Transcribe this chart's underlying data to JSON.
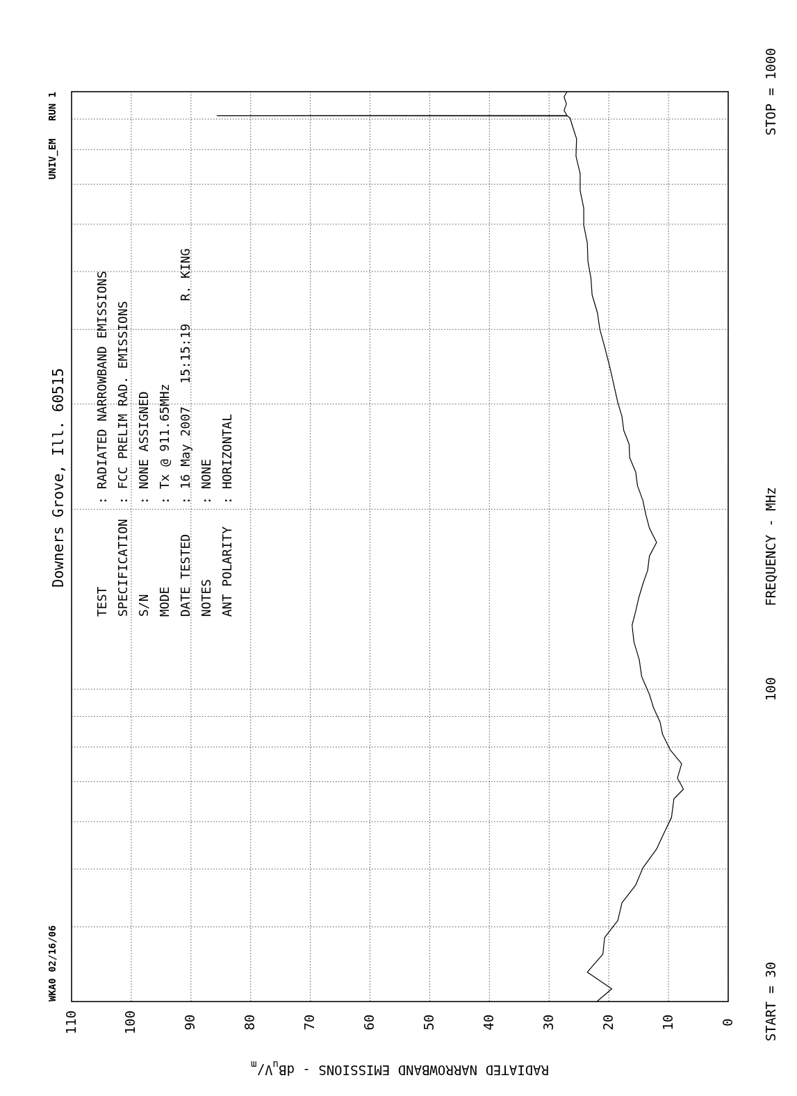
{
  "chart_data": {
    "type": "line",
    "subtitle": "Downers Grove, Ill. 60515",
    "ylabel": "FREQUENCY - MHz",
    "xlabel": "RADIATED NARROWBAND EMISSIONS - dB$_{u}$V/$_{m}$",
    "annotations": [
      "WKA0 02/16/06",
      "UNIV_EM   RUN 1",
      "TEST: RADIATED NARROWBAND EMISSIONS",
      "SPECIFICATION: FCC PRELIM RAD. EMISSIONS",
      "S/N: NONE ASSIGNED",
      "MODE: Tx @ 911.65MHz",
      "DATE TESTED: 16 May 2007   15:15:19   R. KING",
      "NOTES: NONE",
      "ANT POLARITY: HORIZONTAL"
    ],
    "log": "y",
    "grid": true,
    "line_style": "solid",
    "marker": "none",
    "ylim": [
      30,
      1000
    ],
    "yticks": [
      {
        "value": 30,
        "label": "START = 30"
      },
      {
        "value": 40,
        "label": null
      },
      {
        "value": 50,
        "label": null
      },
      {
        "value": 60,
        "label": null
      },
      {
        "value": 70,
        "label": null
      },
      {
        "value": 80,
        "label": null
      },
      {
        "value": 90,
        "label": null
      },
      {
        "value": 100,
        "label": "100"
      },
      {
        "value": 200,
        "label": null
      },
      {
        "value": 300,
        "label": null
      },
      {
        "value": 400,
        "label": null
      },
      {
        "value": 500,
        "label": null
      },
      {
        "value": 600,
        "label": null
      },
      {
        "value": 700,
        "label": null
      },
      {
        "value": 800,
        "label": null
      },
      {
        "value": 900,
        "label": null
      },
      {
        "value": 1000,
        "label": "STOP = 1000"
      }
    ],
    "xlim": [
      110,
      0
    ],
    "xticks": [
      110,
      100,
      90,
      80,
      70,
      60,
      50,
      40,
      30,
      20,
      10,
      0
    ],
    "series": [
      {
        "color": "#000000",
        "values": [
          30,
          31.5,
          33.6,
          36,
          38.4,
          41,
          43.9,
          47,
          50.2,
          54,
          57.3,
          61,
          65.5,
          68,
          71,
          75,
          79.1,
          84,
          88,
          93,
          98,
          105,
          112,
          120,
          128,
          135,
          142,
          150,
          158,
          167,
          176,
          186,
          196,
          207,
          219,
          231,
          244,
          257,
          271,
          286,
          302,
          318,
          345,
          374,
          400,
          426,
          457,
          488,
          520,
          558,
          598,
          638,
          683,
          729,
          780,
          834,
          870,
          904,
          911,
          911.65,
          912.3,
          930,
          954,
          980,
          1000
        ],
        "x": [
          22,
          19.5,
          23.6,
          21,
          20.7,
          18.5,
          17.8,
          15.5,
          14.3,
          12,
          10.8,
          9.5,
          9.1,
          7.5,
          8.5,
          7.8,
          9.7,
          11,
          11.4,
          12.5,
          13.2,
          14.5,
          14.9,
          15.8,
          16.1,
          15.5,
          15,
          14.3,
          13.5,
          13.2,
          12,
          13.2,
          13.8,
          14.3,
          15.2,
          15.5,
          16.5,
          16.6,
          17.5,
          17.8,
          18.5,
          19,
          19.8,
          20.7,
          21.5,
          21.9,
          22.8,
          23,
          23.5,
          23.6,
          24.2,
          24.2,
          24.8,
          24.8,
          25.5,
          25.4,
          26,
          26.5,
          27,
          85.6,
          27,
          27.5,
          27.1,
          27.5,
          27
        ]
      }
    ]
  }
}
